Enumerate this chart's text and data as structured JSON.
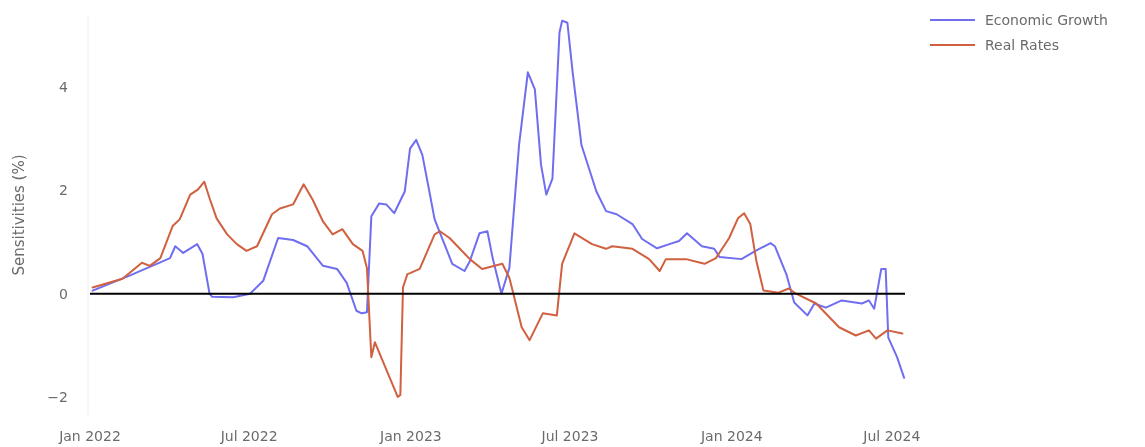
{
  "chart_data": {
    "type": "line",
    "ylabel": "Sensitivities (%)",
    "legend": "top right",
    "grid": false,
    "line_style": "solid",
    "marker": "none",
    "xlim": [
      "2022-01-01",
      "2024-07-16"
    ],
    "xticks": [
      {
        "value": "2022-01-01",
        "label": "Jan 2022"
      },
      {
        "value": "2022-07-01",
        "label": "Jul 2022"
      },
      {
        "value": "2023-01-01",
        "label": "Jan 2023"
      },
      {
        "value": "2023-07-01",
        "label": "Jul 2023"
      },
      {
        "value": "2024-01-01",
        "label": "Jan 2024"
      },
      {
        "value": "2024-07-01",
        "label": "Jul 2024"
      }
    ],
    "ylim": [
      -2.35,
      5.4
    ],
    "yticks": [
      {
        "value": -2,
        "label": "−2"
      },
      0,
      2,
      4
    ],
    "ref_lines": [
      {
        "axis": "y",
        "value": 0,
        "label": null,
        "color": "#000000"
      }
    ],
    "series": [
      {
        "name": "Economic Growth",
        "color": "#6f6ef0",
        "x": [
          "2022-01-04",
          "2022-02-15",
          "2022-04-02",
          "2022-04-08",
          "2022-04-17",
          "2022-05-03",
          "2022-05-09",
          "2022-05-17",
          "2022-05-20",
          "2022-06-13",
          "2022-07-02",
          "2022-07-17",
          "2022-08-03",
          "2022-08-20",
          "2022-09-05",
          "2022-09-23",
          "2022-10-09",
          "2022-10-20",
          "2022-10-31",
          "2022-11-06",
          "2022-11-12",
          "2022-11-17",
          "2022-11-26",
          "2022-12-04",
          "2022-12-13",
          "2022-12-25",
          "2022-12-31",
          "2023-01-07",
          "2023-01-14",
          "2023-01-22",
          "2023-01-28",
          "2023-02-17",
          "2023-03-03",
          "2023-03-09",
          "2023-03-20",
          "2023-03-29",
          "2023-04-04",
          "2023-04-14",
          "2023-04-23",
          "2023-05-04",
          "2023-05-14",
          "2023-05-22",
          "2023-05-29",
          "2023-06-04",
          "2023-06-11",
          "2023-06-19",
          "2023-06-22",
          "2023-06-28",
          "2023-07-04",
          "2023-07-14",
          "2023-07-31",
          "2023-08-11",
          "2023-08-23",
          "2023-09-10",
          "2023-09-21",
          "2023-10-08",
          "2023-10-22",
          "2023-11-02",
          "2023-11-11",
          "2023-11-28",
          "2023-12-12",
          "2023-12-18",
          "2024-01-12",
          "2024-01-28",
          "2024-02-14",
          "2024-02-19",
          "2024-03-03",
          "2024-03-12",
          "2024-03-27",
          "2024-04-04",
          "2024-04-17",
          "2024-05-05",
          "2024-05-28",
          "2024-06-05",
          "2024-06-11",
          "2024-06-19",
          "2024-06-24",
          "2024-06-27",
          "2024-07-07",
          "2024-07-15"
        ],
        "values": [
          0.06,
          0.35,
          0.69,
          0.92,
          0.79,
          0.96,
          0.77,
          0,
          -0.06,
          -0.07,
          0,
          0.25,
          1.08,
          1.04,
          0.92,
          0.54,
          0.48,
          0.21,
          -0.33,
          -0.38,
          -0.36,
          1.5,
          1.75,
          1.73,
          1.56,
          1.98,
          2.81,
          2.98,
          2.69,
          1.98,
          1.44,
          0.58,
          0.44,
          0.63,
          1.17,
          1.21,
          0.69,
          0,
          0.5,
          2.88,
          4.29,
          3.96,
          2.5,
          1.92,
          2.23,
          5.06,
          5.29,
          5.25,
          4.29,
          2.88,
          1.98,
          1.6,
          1.54,
          1.35,
          1.06,
          0.88,
          0.96,
          1.02,
          1.17,
          0.92,
          0.87,
          0.71,
          0.67,
          0.83,
          0.98,
          0.92,
          0.38,
          -0.17,
          -0.42,
          -0.19,
          -0.27,
          -0.13,
          -0.19,
          -0.13,
          -0.29,
          0.48,
          0.48,
          -0.85,
          -1.23,
          -1.63
        ]
      },
      {
        "name": "Real Rates",
        "color": "#d0603f",
        "x": [
          "2022-01-04",
          "2022-02-07",
          "2022-03-01",
          "2022-03-10",
          "2022-03-22",
          "2022-04-05",
          "2022-04-13",
          "2022-04-25",
          "2022-05-04",
          "2022-05-11",
          "2022-05-17",
          "2022-05-25",
          "2022-06-06",
          "2022-06-17",
          "2022-06-28",
          "2022-07-10",
          "2022-07-27",
          "2022-08-05",
          "2022-08-20",
          "2022-09-01",
          "2022-09-11",
          "2022-09-23",
          "2022-10-04",
          "2022-10-15",
          "2022-10-27",
          "2022-11-07",
          "2022-11-12",
          "2022-11-17",
          "2022-11-21",
          "2022-12-17",
          "2022-12-20",
          "2022-12-23",
          "2022-12-28",
          "2022-12-31",
          "2023-01-11",
          "2023-01-28",
          "2023-02-03",
          "2023-02-14",
          "2023-03-09",
          "2023-03-23",
          "2023-04-15",
          "2023-04-23",
          "2023-05-07",
          "2023-05-16",
          "2023-05-31",
          "2023-06-16",
          "2023-06-22",
          "2023-07-06",
          "2023-07-26",
          "2023-08-11",
          "2023-08-18",
          "2023-09-10",
          "2023-09-29",
          "2023-10-11",
          "2023-10-18",
          "2023-11-10",
          "2023-12-01",
          "2023-12-14",
          "2023-12-29",
          "2024-01-08",
          "2024-01-15",
          "2024-01-22",
          "2024-01-29",
          "2024-02-06",
          "2024-02-23",
          "2024-03-06",
          "2024-03-14",
          "2024-04-06",
          "2024-05-02",
          "2024-05-21",
          "2024-06-05",
          "2024-06-13",
          "2024-06-26",
          "2024-07-13"
        ],
        "values": [
          0.12,
          0.29,
          0.6,
          0.54,
          0.69,
          1.31,
          1.44,
          1.92,
          2.02,
          2.17,
          1.85,
          1.46,
          1.15,
          0.96,
          0.83,
          0.92,
          1.54,
          1.65,
          1.73,
          2.12,
          1.83,
          1.4,
          1.15,
          1.25,
          0.96,
          0.83,
          0.5,
          -1.23,
          -0.94,
          -2.0,
          -1.96,
          0.12,
          0.38,
          0.4,
          0.48,
          1.15,
          1.21,
          1.08,
          0.67,
          0.48,
          0.58,
          0.31,
          -0.65,
          -0.9,
          -0.38,
          -0.42,
          0.58,
          1.17,
          0.96,
          0.87,
          0.92,
          0.87,
          0.67,
          0.44,
          0.67,
          0.67,
          0.58,
          0.69,
          1.08,
          1.46,
          1.56,
          1.35,
          0.63,
          0.06,
          0.02,
          0.1,
          0,
          -0.19,
          -0.65,
          -0.81,
          -0.71,
          -0.87,
          -0.71,
          -0.77
        ]
      }
    ]
  }
}
